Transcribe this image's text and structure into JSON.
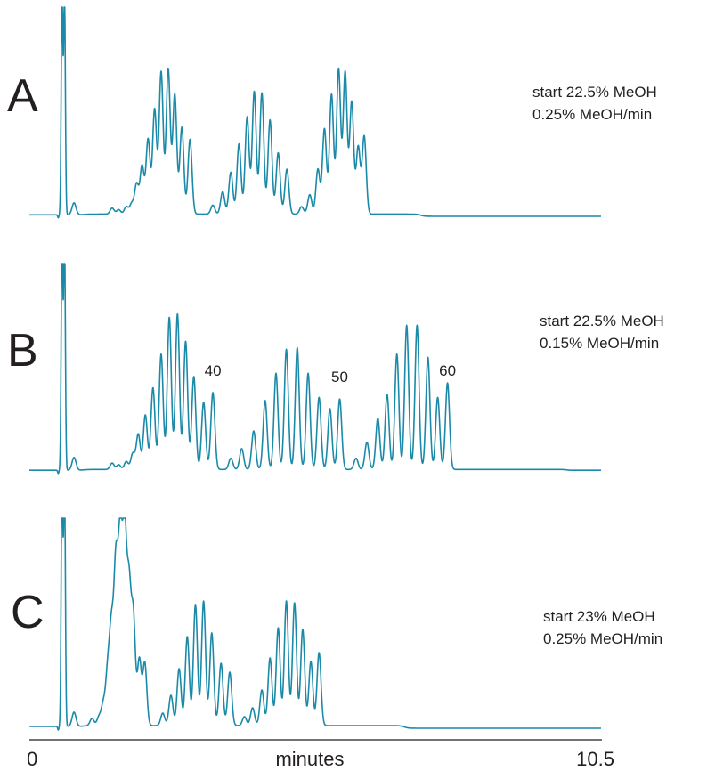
{
  "colors": {
    "trace": "#1b8aa8",
    "text": "#231f20"
  },
  "x_axis": {
    "label": "minutes",
    "start_label": "0",
    "end_label": "10.5"
  },
  "chart_data": [
    {
      "type": "line",
      "panel": "A",
      "conditions": [
        "start 22.5% MeOH",
        "0.25% MeOH/min"
      ],
      "xlim": [
        0,
        10.5
      ],
      "baseline": 0.01,
      "void_peak": {
        "x": 0.6,
        "height": 1.5
      },
      "late_baseline": 0.0,
      "plateau": {
        "start": 1.0,
        "end": 7.2,
        "level": 0.005
      },
      "peaks": [
        {
          "x": 0.82,
          "h": 0.08
        },
        {
          "x": 1.52,
          "h": 0.04
        },
        {
          "x": 1.64,
          "h": 0.03
        },
        {
          "x": 1.78,
          "h": 0.05
        },
        {
          "x": 1.88,
          "h": 0.07
        },
        {
          "x": 1.97,
          "h": 0.2
        },
        {
          "x": 2.07,
          "h": 0.32
        },
        {
          "x": 2.18,
          "h": 0.5
        },
        {
          "x": 2.3,
          "h": 0.7
        },
        {
          "x": 2.42,
          "h": 0.95
        },
        {
          "x": 2.55,
          "h": 0.97
        },
        {
          "x": 2.67,
          "h": 0.8
        },
        {
          "x": 2.8,
          "h": 0.58
        },
        {
          "x": 2.95,
          "h": 0.5
        },
        {
          "x": 3.37,
          "h": 0.06
        },
        {
          "x": 3.55,
          "h": 0.15
        },
        {
          "x": 3.7,
          "h": 0.28
        },
        {
          "x": 3.85,
          "h": 0.47
        },
        {
          "x": 4.0,
          "h": 0.65
        },
        {
          "x": 4.13,
          "h": 0.82
        },
        {
          "x": 4.27,
          "h": 0.81
        },
        {
          "x": 4.42,
          "h": 0.63
        },
        {
          "x": 4.57,
          "h": 0.41
        },
        {
          "x": 4.73,
          "h": 0.3
        },
        {
          "x": 5.0,
          "h": 0.05
        },
        {
          "x": 5.15,
          "h": 0.13
        },
        {
          "x": 5.3,
          "h": 0.3
        },
        {
          "x": 5.42,
          "h": 0.57
        },
        {
          "x": 5.55,
          "h": 0.8
        },
        {
          "x": 5.68,
          "h": 0.97
        },
        {
          "x": 5.8,
          "h": 0.95
        },
        {
          "x": 5.92,
          "h": 0.75
        },
        {
          "x": 6.04,
          "h": 0.45
        },
        {
          "x": 6.15,
          "h": 0.52
        }
      ]
    },
    {
      "type": "line",
      "panel": "B",
      "conditions": [
        "start 22.5% MeOH",
        "0.15% MeOH/min"
      ],
      "xlim": [
        0,
        10.5
      ],
      "baseline": 0.01,
      "void_peak": {
        "x": 0.6,
        "height": 1.5
      },
      "late_baseline": 0.01,
      "plateau": {
        "start": 1.0,
        "end": 9.9,
        "level": 0.005
      },
      "peaks": [
        {
          "x": 0.82,
          "h": 0.08
        },
        {
          "x": 1.52,
          "h": 0.04
        },
        {
          "x": 1.64,
          "h": 0.03
        },
        {
          "x": 1.78,
          "h": 0.05
        },
        {
          "x": 1.9,
          "h": 0.1
        },
        {
          "x": 2.0,
          "h": 0.22
        },
        {
          "x": 2.13,
          "h": 0.34
        },
        {
          "x": 2.27,
          "h": 0.51
        },
        {
          "x": 2.42,
          "h": 0.72
        },
        {
          "x": 2.57,
          "h": 0.95
        },
        {
          "x": 2.72,
          "h": 0.97
        },
        {
          "x": 2.87,
          "h": 0.8
        },
        {
          "x": 3.02,
          "h": 0.58
        },
        {
          "x": 3.2,
          "h": 0.42
        },
        {
          "x": 3.37,
          "h": 0.48
        },
        {
          "x": 3.7,
          "h": 0.07
        },
        {
          "x": 3.9,
          "h": 0.13
        },
        {
          "x": 4.12,
          "h": 0.24
        },
        {
          "x": 4.33,
          "h": 0.43
        },
        {
          "x": 4.53,
          "h": 0.6
        },
        {
          "x": 4.72,
          "h": 0.75
        },
        {
          "x": 4.92,
          "h": 0.76
        },
        {
          "x": 5.12,
          "h": 0.6
        },
        {
          "x": 5.32,
          "h": 0.45
        },
        {
          "x": 5.52,
          "h": 0.38
        },
        {
          "x": 5.7,
          "h": 0.44
        },
        {
          "x": 6.0,
          "h": 0.07
        },
        {
          "x": 6.2,
          "h": 0.17
        },
        {
          "x": 6.4,
          "h": 0.32
        },
        {
          "x": 6.57,
          "h": 0.47
        },
        {
          "x": 6.75,
          "h": 0.72
        },
        {
          "x": 6.93,
          "h": 0.9
        },
        {
          "x": 7.12,
          "h": 0.9
        },
        {
          "x": 7.32,
          "h": 0.7
        },
        {
          "x": 7.5,
          "h": 0.45
        },
        {
          "x": 7.68,
          "h": 0.54
        }
      ],
      "annotations": [
        {
          "text": "40",
          "x": 3.37,
          "y": 0.6
        },
        {
          "text": "50",
          "x": 5.7,
          "y": 0.56
        },
        {
          "text": "60",
          "x": 7.68,
          "y": 0.6
        }
      ]
    },
    {
      "type": "line",
      "panel": "C",
      "conditions": [
        "start 23% MeOH",
        "0.25% MeOH/min"
      ],
      "xlim": [
        0,
        10.5
      ],
      "baseline": 0.01,
      "void_peak": {
        "x": 0.6,
        "height": 1.5
      },
      "late_baseline": 0.0,
      "plateau": {
        "start": 1.0,
        "end": 6.9,
        "level": 0.005
      },
      "peaks": [
        {
          "x": 0.82,
          "h": 0.08
        },
        {
          "x": 1.15,
          "h": 0.04
        },
        {
          "x": 1.28,
          "h": 0.05
        },
        {
          "x": 1.36,
          "h": 0.12
        },
        {
          "x": 1.44,
          "h": 0.3
        },
        {
          "x": 1.51,
          "h": 0.52
        },
        {
          "x": 1.59,
          "h": 0.88
        },
        {
          "x": 1.67,
          "h": 1.02
        },
        {
          "x": 1.75,
          "h": 1.05
        },
        {
          "x": 1.83,
          "h": 0.75
        },
        {
          "x": 1.91,
          "h": 0.6
        },
        {
          "x": 2.02,
          "h": 0.37
        },
        {
          "x": 2.12,
          "h": 0.35
        },
        {
          "x": 2.45,
          "h": 0.07
        },
        {
          "x": 2.6,
          "h": 0.17
        },
        {
          "x": 2.75,
          "h": 0.32
        },
        {
          "x": 2.9,
          "h": 0.5
        },
        {
          "x": 3.05,
          "h": 0.68
        },
        {
          "x": 3.2,
          "h": 0.7
        },
        {
          "x": 3.35,
          "h": 0.52
        },
        {
          "x": 3.52,
          "h": 0.35
        },
        {
          "x": 3.68,
          "h": 0.3
        },
        {
          "x": 3.95,
          "h": 0.05
        },
        {
          "x": 4.1,
          "h": 0.1
        },
        {
          "x": 4.27,
          "h": 0.2
        },
        {
          "x": 4.42,
          "h": 0.38
        },
        {
          "x": 4.57,
          "h": 0.55
        },
        {
          "x": 4.72,
          "h": 0.7
        },
        {
          "x": 4.87,
          "h": 0.69
        },
        {
          "x": 5.02,
          "h": 0.54
        },
        {
          "x": 5.17,
          "h": 0.36
        },
        {
          "x": 5.32,
          "h": 0.41
        }
      ]
    }
  ]
}
